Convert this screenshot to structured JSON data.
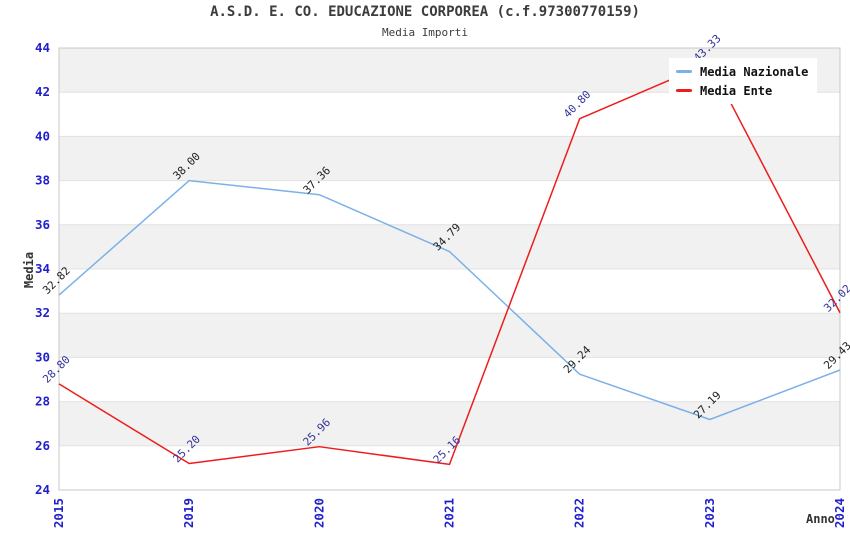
{
  "header": {
    "title": "A.S.D. E. CO. EDUCAZIONE CORPOREA (c.f.97300770159)",
    "subtitle": "Media Importi"
  },
  "chart_data": {
    "type": "line",
    "title": "A.S.D. E. CO. EDUCAZIONE CORPOREA (c.f.97300770159)",
    "subtitle": "Media Importi",
    "xlabel": "Anno",
    "ylabel": "Media",
    "categories": [
      "2015",
      "2019",
      "2020",
      "2021",
      "2022",
      "2023",
      "2024"
    ],
    "series": [
      {
        "name": "Media Nazionale",
        "color": "#7cb1e8",
        "label_color": "#222222",
        "values": [
          32.82,
          38.0,
          37.36,
          34.79,
          29.24,
          27.19,
          29.43
        ]
      },
      {
        "name": "Media Ente",
        "color": "#ee1c1c",
        "label_color": "#333399",
        "values": [
          28.8,
          25.2,
          25.96,
          25.16,
          40.8,
          43.33,
          32.02
        ]
      }
    ],
    "ylim": [
      24,
      44
    ],
    "ytick_step": 2,
    "grid": true,
    "alternating_bands": true,
    "legend_position": "top-right",
    "point_label_decimals": 2,
    "colors": {
      "axis_tick_text": "#2121cc",
      "band_fill": "#f1f1f1",
      "gridline": "#e2e2e2",
      "plot_border": "#c8c8c8",
      "title_text": "#3c3c3c",
      "axis_title_text": "#333333",
      "background": "#ffffff"
    }
  }
}
